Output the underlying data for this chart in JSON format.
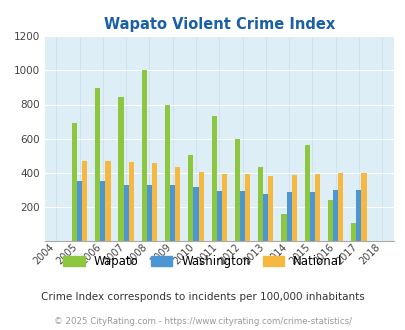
{
  "title": "Wapato Violent Crime Index",
  "subtitle": "Crime Index corresponds to incidents per 100,000 inhabitants",
  "footer": "© 2025 CityRating.com - https://www.cityrating.com/crime-statistics/",
  "years": [
    2004,
    2005,
    2006,
    2007,
    2008,
    2009,
    2010,
    2011,
    2012,
    2013,
    2014,
    2015,
    2016,
    2017,
    2018
  ],
  "wapato": [
    0,
    690,
    895,
    845,
    1005,
    800,
    505,
    730,
    595,
    435,
    160,
    560,
    240,
    105,
    0
  ],
  "washington": [
    0,
    350,
    350,
    330,
    330,
    330,
    315,
    295,
    295,
    275,
    285,
    285,
    300,
    300,
    0
  ],
  "national": [
    0,
    470,
    470,
    465,
    455,
    435,
    405,
    395,
    395,
    380,
    385,
    395,
    400,
    400,
    0
  ],
  "wapato_color": "#8dc63f",
  "washington_color": "#4d96d4",
  "national_color": "#f5b942",
  "bg_color": "#ddeef6",
  "title_color": "#1a5fa8",
  "subtitle_color": "#333333",
  "footer_color": "#999999",
  "ylim": [
    0,
    1200
  ],
  "yticks": [
    0,
    200,
    400,
    600,
    800,
    1000,
    1200
  ],
  "bar_width": 0.22,
  "grid_color": "#c8dce8"
}
